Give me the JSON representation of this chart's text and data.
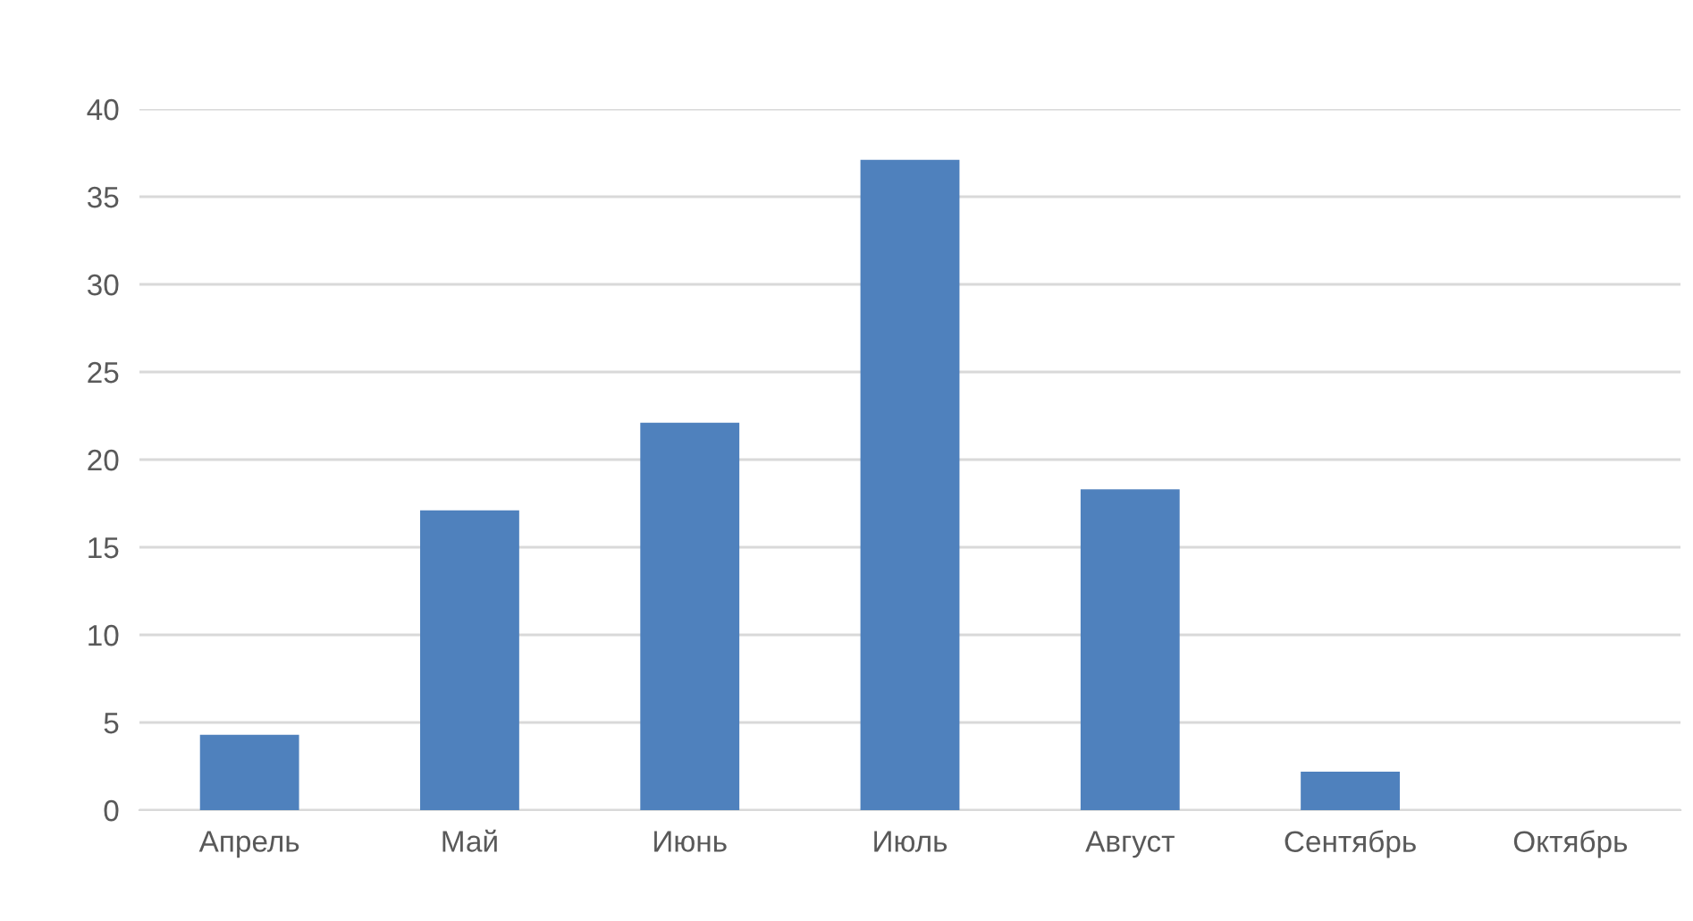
{
  "chart_data": {
    "type": "bar",
    "categories": [
      "Апрель",
      "Май",
      "Июнь",
      "Июль",
      "Август",
      "Сентябрь",
      "Октябрь"
    ],
    "values": [
      4.3,
      17.1,
      22.1,
      37.1,
      18.3,
      2.2,
      0
    ],
    "color": "#4f81bd",
    "ylim": [
      0,
      40
    ],
    "yticks": [
      0,
      5,
      10,
      15,
      20,
      25,
      30,
      35,
      40
    ],
    "grid": "y",
    "legend": false
  }
}
